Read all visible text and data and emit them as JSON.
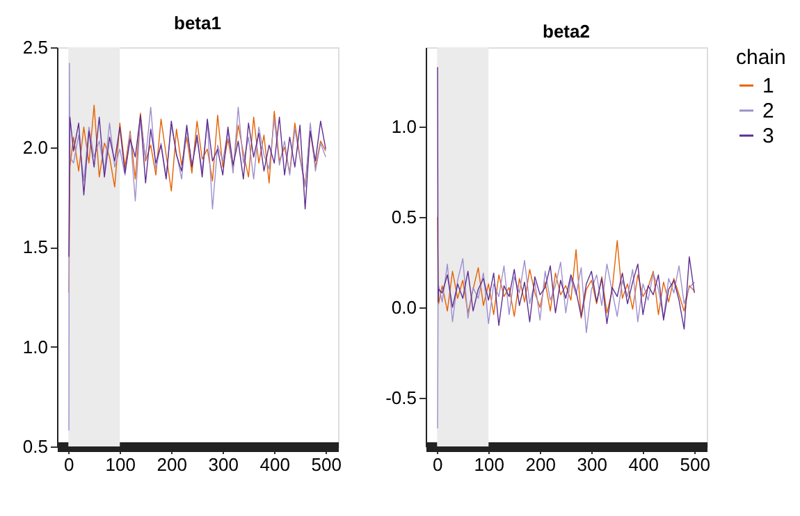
{
  "chart_data": [
    {
      "type": "line",
      "title": "beta1",
      "x": [
        1,
        2,
        3,
        10,
        20,
        30,
        40,
        50,
        60,
        70,
        80,
        90,
        100,
        110,
        120,
        130,
        140,
        150,
        160,
        170,
        180,
        190,
        200,
        210,
        220,
        230,
        240,
        250,
        260,
        270,
        280,
        290,
        300,
        310,
        320,
        330,
        340,
        350,
        360,
        370,
        380,
        390,
        400,
        410,
        420,
        430,
        440,
        450,
        460,
        470,
        480,
        490,
        500
      ],
      "xlim": [
        -22,
        524
      ],
      "xticks": [
        0,
        100,
        200,
        300,
        400,
        500
      ],
      "ylim": [
        0.5,
        2.5
      ],
      "yticks": [
        0.5,
        {
          "value": 1,
          "label": "1.0"
        },
        1.5,
        {
          "value": 2,
          "label": "2.0"
        },
        2.5
      ],
      "grid": false,
      "legend": "right",
      "legend_title": "chain",
      "bands": [
        {
          "axis": "x",
          "from": 0,
          "to": 100,
          "color": "#ebebeb"
        }
      ],
      "series": [
        {
          "name": "1",
          "color": "#e66101",
          "values": [
            1.27,
            1.58,
            1.9,
            2.05,
            1.88,
            2.1,
            1.92,
            2.21,
            1.85,
            2.02,
            1.95,
            1.8,
            2.12,
            1.9,
            2.08,
            1.84,
            2.17,
            1.93,
            2.01,
            1.86,
            2.14,
            1.96,
            1.78,
            2.09,
            1.91,
            2.05,
            1.87,
            2.13,
            1.94,
            1.99,
            1.83,
            2.16,
            1.9,
            2.04,
            1.89,
            2.11,
            1.97,
            1.85,
            2.15,
            1.92,
            2.06,
            1.82,
            2.18,
            1.93,
            2.0,
            1.87,
            2.12,
            1.95,
            1.81,
            2.08,
            1.9,
            2.03,
            1.98
          ]
        },
        {
          "name": "2",
          "color": "#9e8fce",
          "values": [
            0.58,
            2.42,
            1.95,
            1.92,
            2.06,
            1.83,
            2.1,
            1.95,
            2.03,
            1.88,
            2.12,
            1.9,
            1.99,
            1.86,
            2.07,
            1.73,
            2.15,
            1.94,
            2.2,
            1.89,
            2.02,
            1.85,
            2.11,
            1.97,
            1.84,
            2.09,
            1.91,
            2.04,
            1.88,
            2.13,
            1.69,
            2.01,
            1.93,
            2.08,
            1.87,
            2.2,
            1.92,
            2.05,
            1.84,
            2.1,
            1.96,
            1.89,
            2.14,
            1.91,
            2.03,
            1.86,
            2.09,
            1.94,
            1.8,
            2.12,
            1.88,
            2.02,
            1.95
          ]
        },
        {
          "name": "3",
          "color": "#5e2d91",
          "values": [
            1.45,
            1.8,
            2.15,
            1.98,
            2.12,
            1.76,
            2.08,
            1.9,
            2.15,
            1.85,
            2.05,
            1.93,
            2.1,
            1.87,
            2.04,
            1.95,
            2.16,
            1.82,
            2.09,
            1.92,
            2.01,
            1.84,
            2.13,
            1.96,
            1.88,
            2.11,
            1.9,
            2.06,
            1.85,
            2.14,
            1.93,
            1.99,
            1.86,
            2.1,
            1.91,
            2.03,
            1.84,
            2.12,
            1.95,
            2.07,
            1.88,
            2.01,
            1.92,
            2.15,
            1.86,
            2.05,
            1.9,
            2.11,
            1.69,
            2.08,
            1.93,
            2.13,
            1.99
          ]
        }
      ]
    },
    {
      "type": "line",
      "title": "beta2",
      "x": [
        1,
        2,
        3,
        10,
        20,
        30,
        40,
        50,
        60,
        70,
        80,
        90,
        100,
        110,
        120,
        130,
        140,
        150,
        160,
        170,
        180,
        190,
        200,
        210,
        220,
        230,
        240,
        250,
        260,
        270,
        280,
        290,
        300,
        310,
        320,
        330,
        340,
        350,
        360,
        370,
        380,
        390,
        400,
        410,
        420,
        430,
        440,
        450,
        460,
        470,
        480,
        490,
        500
      ],
      "xlim": [
        -22,
        524
      ],
      "xticks": [
        0,
        100,
        200,
        300,
        400,
        500
      ],
      "ylim": [
        -0.77,
        1.44
      ],
      "yticks": [
        -0.5,
        {
          "value": 0,
          "label": "0.0"
        },
        0.5,
        {
          "value": 1,
          "label": "1.0"
        }
      ],
      "grid": false,
      "bands": [
        {
          "axis": "x",
          "from": 0,
          "to": 100,
          "color": "#ebebeb"
        }
      ],
      "series": [
        {
          "name": "1",
          "color": "#e66101",
          "values": [
            0.5,
            0.15,
            0.02,
            0.12,
            -0.02,
            0.2,
            0.05,
            0.15,
            -0.03,
            0.1,
            0.22,
            0.01,
            0.13,
            -0.04,
            0.18,
            0.06,
            0.11,
            -0.05,
            0.16,
            0.03,
            0.21,
            0.08,
            0.0,
            0.14,
            -0.02,
            0.19,
            0.07,
            0.12,
            0.04,
            0.32,
            -0.06,
            0.1,
            0.15,
            0.02,
            0.17,
            -0.03,
            0.09,
            0.37,
            0.05,
            0.13,
            -0.01,
            0.18,
            0.06,
            0.11,
            0.2,
            -0.04,
            0.14,
            0.03,
            0.16,
            0.07,
            -0.02,
            0.12,
            0.09
          ]
        },
        {
          "name": "2",
          "color": "#9e8fce",
          "values": [
            -0.67,
            0.05,
            0.12,
            0.03,
            0.24,
            -0.08,
            0.15,
            0.27,
            -0.06,
            0.11,
            0.05,
            0.19,
            -0.09,
            0.13,
            0.06,
            0.23,
            -0.04,
            0.17,
            0.08,
            0.26,
            0.02,
            0.14,
            -0.07,
            0.2,
            0.04,
            0.12,
            0.25,
            -0.03,
            0.16,
            0.07,
            0.22,
            -0.14,
            0.1,
            0.18,
            0.01,
            0.24,
            0.09,
            -0.05,
            0.15,
            0.06,
            0.21,
            -0.08,
            0.13,
            0.04,
            0.19,
            0.1,
            -0.06,
            0.16,
            0.08,
            0.23,
            0.02,
            0.11,
            0.14
          ]
        },
        {
          "name": "3",
          "color": "#5e2d91",
          "values": [
            1.33,
            0.03,
            0.1,
            0.08,
            0.18,
            0.0,
            0.13,
            0.05,
            0.2,
            -0.02,
            0.1,
            0.16,
            0.04,
            0.19,
            -0.1,
            0.12,
            0.06,
            0.21,
            0.01,
            0.14,
            -0.08,
            0.17,
            0.07,
            0.11,
            0.23,
            -0.03,
            0.15,
            0.05,
            0.18,
            0.09,
            -0.05,
            0.13,
            0.2,
            0.03,
            0.16,
            -0.09,
            0.11,
            0.06,
            0.19,
            0.02,
            0.14,
            0.24,
            -0.04,
            0.12,
            0.07,
            0.18,
            -0.07,
            0.1,
            0.15,
            0.04,
            -0.12,
            0.28,
            0.08
          ]
        }
      ]
    }
  ]
}
